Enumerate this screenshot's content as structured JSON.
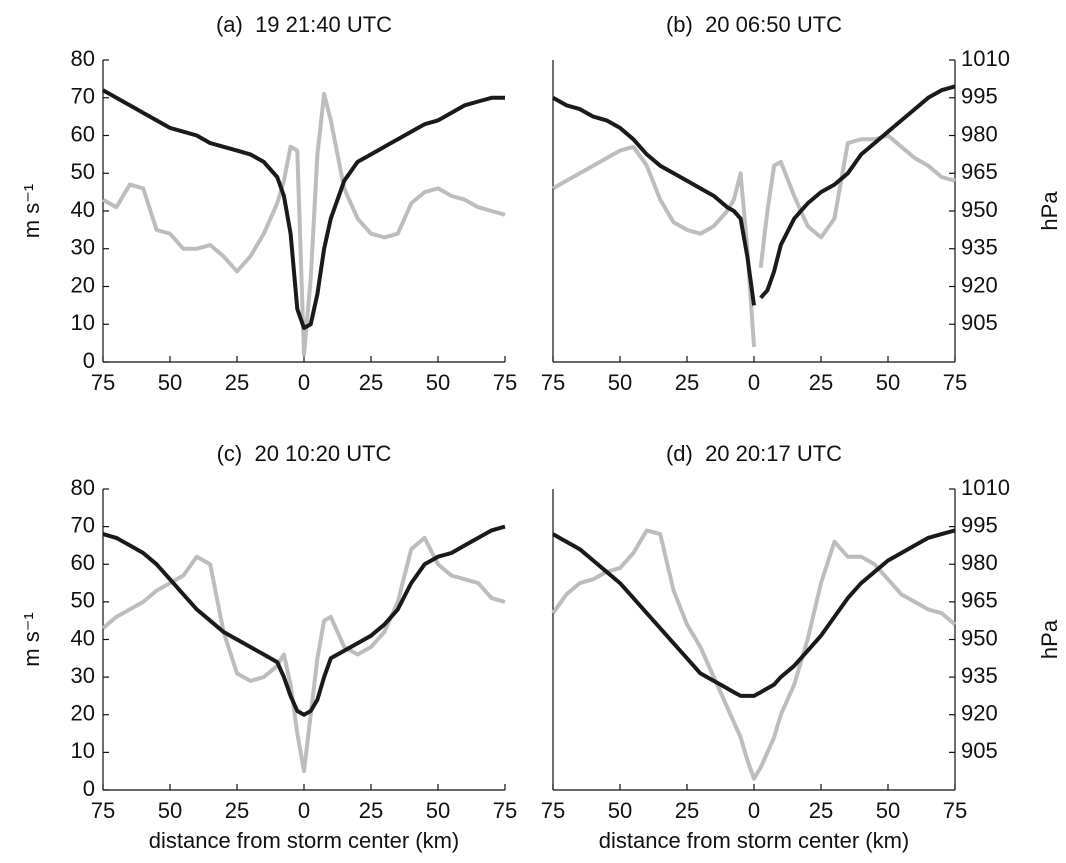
{
  "chart_data": [
    {
      "type": "line",
      "title": "(a)  19 21:40 UTC",
      "ylabel": "m s⁻¹",
      "x": [
        -75,
        -70,
        -65,
        -60,
        -55,
        -50,
        -45,
        -40,
        -35,
        -30,
        -25,
        -20,
        -15,
        -10,
        -7.5,
        -5,
        -2.5,
        0,
        2.5,
        5,
        7.5,
        10,
        15,
        20,
        25,
        30,
        35,
        40,
        45,
        50,
        55,
        60,
        65,
        70,
        75
      ],
      "series": [
        {
          "color": "#bdbdbd",
          "values": [
            43,
            41,
            47,
            46,
            35,
            34,
            30,
            30,
            31,
            28,
            24,
            28,
            34,
            42,
            48,
            57,
            56,
            2,
            22,
            55,
            71,
            64,
            46,
            38,
            34,
            33,
            34,
            42,
            45,
            46,
            44,
            43,
            41,
            40,
            39
          ]
        },
        {
          "color": "#1a1a1a",
          "axis": "y2",
          "values": [
            998,
            995,
            992,
            989,
            986,
            983,
            981.5,
            980,
            977,
            975.5,
            974,
            972.5,
            969.5,
            963.5,
            956,
            941,
            911,
            903.5,
            905,
            917,
            935,
            947,
            962,
            969.5,
            972.5,
            975.5,
            978.5,
            981.5,
            984.5,
            986,
            989,
            992,
            993.5,
            995,
            995
          ]
        }
      ],
      "xlim": [
        -75,
        75
      ],
      "xticks": [
        {
          "value": -75,
          "label": "75"
        },
        {
          "value": -50,
          "label": "50"
        },
        {
          "value": -25,
          "label": "25"
        },
        0,
        25,
        50,
        75
      ],
      "ylim": [
        0,
        80
      ],
      "yticks": [
        0,
        10,
        20,
        30,
        40,
        50,
        60,
        70,
        80
      ],
      "y2lim": [
        890,
        1010
      ]
    },
    {
      "type": "line",
      "title": "(b)  20 06:50 UTC",
      "y2label": "hPa",
      "x": [
        -75,
        -70,
        -65,
        -60,
        -55,
        -50,
        -45,
        -40,
        -35,
        -30,
        -25,
        -20,
        -15,
        -10,
        -7.5,
        -5,
        -2.5,
        0,
        1.25,
        2.5,
        5,
        7.5,
        10,
        15,
        20,
        25,
        30,
        35,
        40,
        45,
        50,
        55,
        60,
        65,
        70,
        75
      ],
      "series": [
        {
          "color": "#bdbdbd",
          "values": [
            46,
            48,
            50,
            52,
            54,
            56,
            57,
            52,
            43,
            37,
            35,
            34,
            36,
            40,
            43,
            50,
            30,
            4,
            null,
            25,
            40,
            52,
            53,
            44,
            36,
            33,
            38,
            58,
            59,
            59,
            60,
            57,
            54,
            52,
            49,
            48
          ]
        },
        {
          "color": "#1a1a1a",
          "axis": "y2",
          "values": [
            995,
            992,
            990.5,
            987.5,
            986,
            983,
            978.5,
            972.5,
            968,
            965,
            962,
            959,
            956,
            951.5,
            950,
            947,
            932,
            912.5,
            null,
            915.5,
            918.5,
            926,
            936.5,
            947,
            953,
            957.5,
            960.5,
            965,
            972.5,
            977,
            981.5,
            986,
            990.5,
            995,
            998,
            999.5
          ]
        }
      ],
      "xlim": [
        -75,
        75
      ],
      "xticks": [
        {
          "value": -75,
          "label": "75"
        },
        {
          "value": -50,
          "label": "50"
        },
        {
          "value": -25,
          "label": "25"
        },
        0,
        25,
        50,
        75
      ],
      "ylim": [
        0,
        80
      ],
      "y2lim": [
        890,
        1010
      ],
      "y2ticks": [
        905,
        920,
        935,
        950,
        965,
        980,
        995,
        1010
      ]
    },
    {
      "type": "line",
      "title": "(c)  20 10:20 UTC",
      "ylabel": "m s⁻¹",
      "xlabel": "distance from storm center (km)",
      "x": [
        -75,
        -70,
        -65,
        -60,
        -55,
        -50,
        -45,
        -40,
        -35,
        -30,
        -25,
        -20,
        -15,
        -10,
        -7.5,
        -5,
        -2.5,
        0,
        2.5,
        5,
        7.5,
        10,
        15,
        20,
        25,
        30,
        35,
        40,
        45,
        50,
        55,
        60,
        65,
        70,
        75
      ],
      "series": [
        {
          "color": "#bdbdbd",
          "values": [
            43,
            46,
            48,
            50,
            53,
            55,
            57,
            62,
            60,
            42,
            31,
            29,
            30,
            33,
            36,
            28,
            15,
            5,
            20,
            35,
            45,
            46,
            38,
            36,
            38,
            42,
            50,
            64,
            67,
            60,
            57,
            56,
            55,
            51,
            50
          ]
        },
        {
          "color": "#1a1a1a",
          "axis": "y2",
          "values": [
            992,
            990.5,
            987.5,
            984.5,
            980,
            974,
            968,
            962,
            957.5,
            953,
            950,
            947,
            944,
            941,
            935,
            927.5,
            921.5,
            920,
            921.5,
            926,
            935,
            942.5,
            945.5,
            948.5,
            951.5,
            956,
            962,
            972.5,
            980,
            983,
            984.5,
            987.5,
            990.5,
            993.5,
            995
          ]
        }
      ],
      "xlim": [
        -75,
        75
      ],
      "xticks": [
        {
          "value": -75,
          "label": "75"
        },
        {
          "value": -50,
          "label": "50"
        },
        {
          "value": -25,
          "label": "25"
        },
        0,
        25,
        50,
        75
      ],
      "ylim": [
        0,
        80
      ],
      "yticks": [
        0,
        10,
        20,
        30,
        40,
        50,
        60,
        70,
        80
      ],
      "y2lim": [
        890,
        1010
      ]
    },
    {
      "type": "line",
      "title": "(d)  20 20:17 UTC",
      "y2label": "hPa",
      "xlabel": "distance from storm center (km)",
      "x": [
        -75,
        -70,
        -65,
        -60,
        -55,
        -50,
        -45,
        -40,
        -35,
        -30,
        -25,
        -20,
        -15,
        -10,
        -7.5,
        -5,
        -2.5,
        0,
        2.5,
        5,
        7.5,
        10,
        15,
        20,
        25,
        30,
        35,
        40,
        45,
        50,
        55,
        60,
        65,
        70,
        75
      ],
      "series": [
        {
          "color": "#bdbdbd",
          "values": [
            47,
            52,
            55,
            56,
            58,
            59,
            63,
            69,
            68,
            53,
            44,
            38,
            30,
            22,
            18,
            14,
            8,
            3,
            6,
            10,
            14,
            20,
            28,
            40,
            55,
            66,
            62,
            62,
            60,
            56,
            52,
            50,
            48,
            47,
            44
          ]
        },
        {
          "color": "#1a1a1a",
          "axis": "y2",
          "values": [
            992,
            989,
            986,
            981.5,
            977,
            972.5,
            966.5,
            960.5,
            954.5,
            948.5,
            942.5,
            936.5,
            933.5,
            930.5,
            929,
            927.5,
            927.5,
            927.5,
            929,
            930.5,
            932,
            935,
            939.5,
            945.5,
            951.5,
            959,
            966.5,
            972.5,
            977,
            981.5,
            984.5,
            987.5,
            990.5,
            992,
            993.5
          ]
        }
      ],
      "xlim": [
        -75,
        75
      ],
      "xticks": [
        {
          "value": -75,
          "label": "75"
        },
        {
          "value": -50,
          "label": "50"
        },
        {
          "value": -25,
          "label": "25"
        },
        0,
        25,
        50,
        75
      ],
      "ylim": [
        0,
        80
      ],
      "y2lim": [
        890,
        1010
      ],
      "y2ticks": [
        905,
        920,
        935,
        950,
        965,
        980,
        995,
        1010
      ]
    }
  ]
}
